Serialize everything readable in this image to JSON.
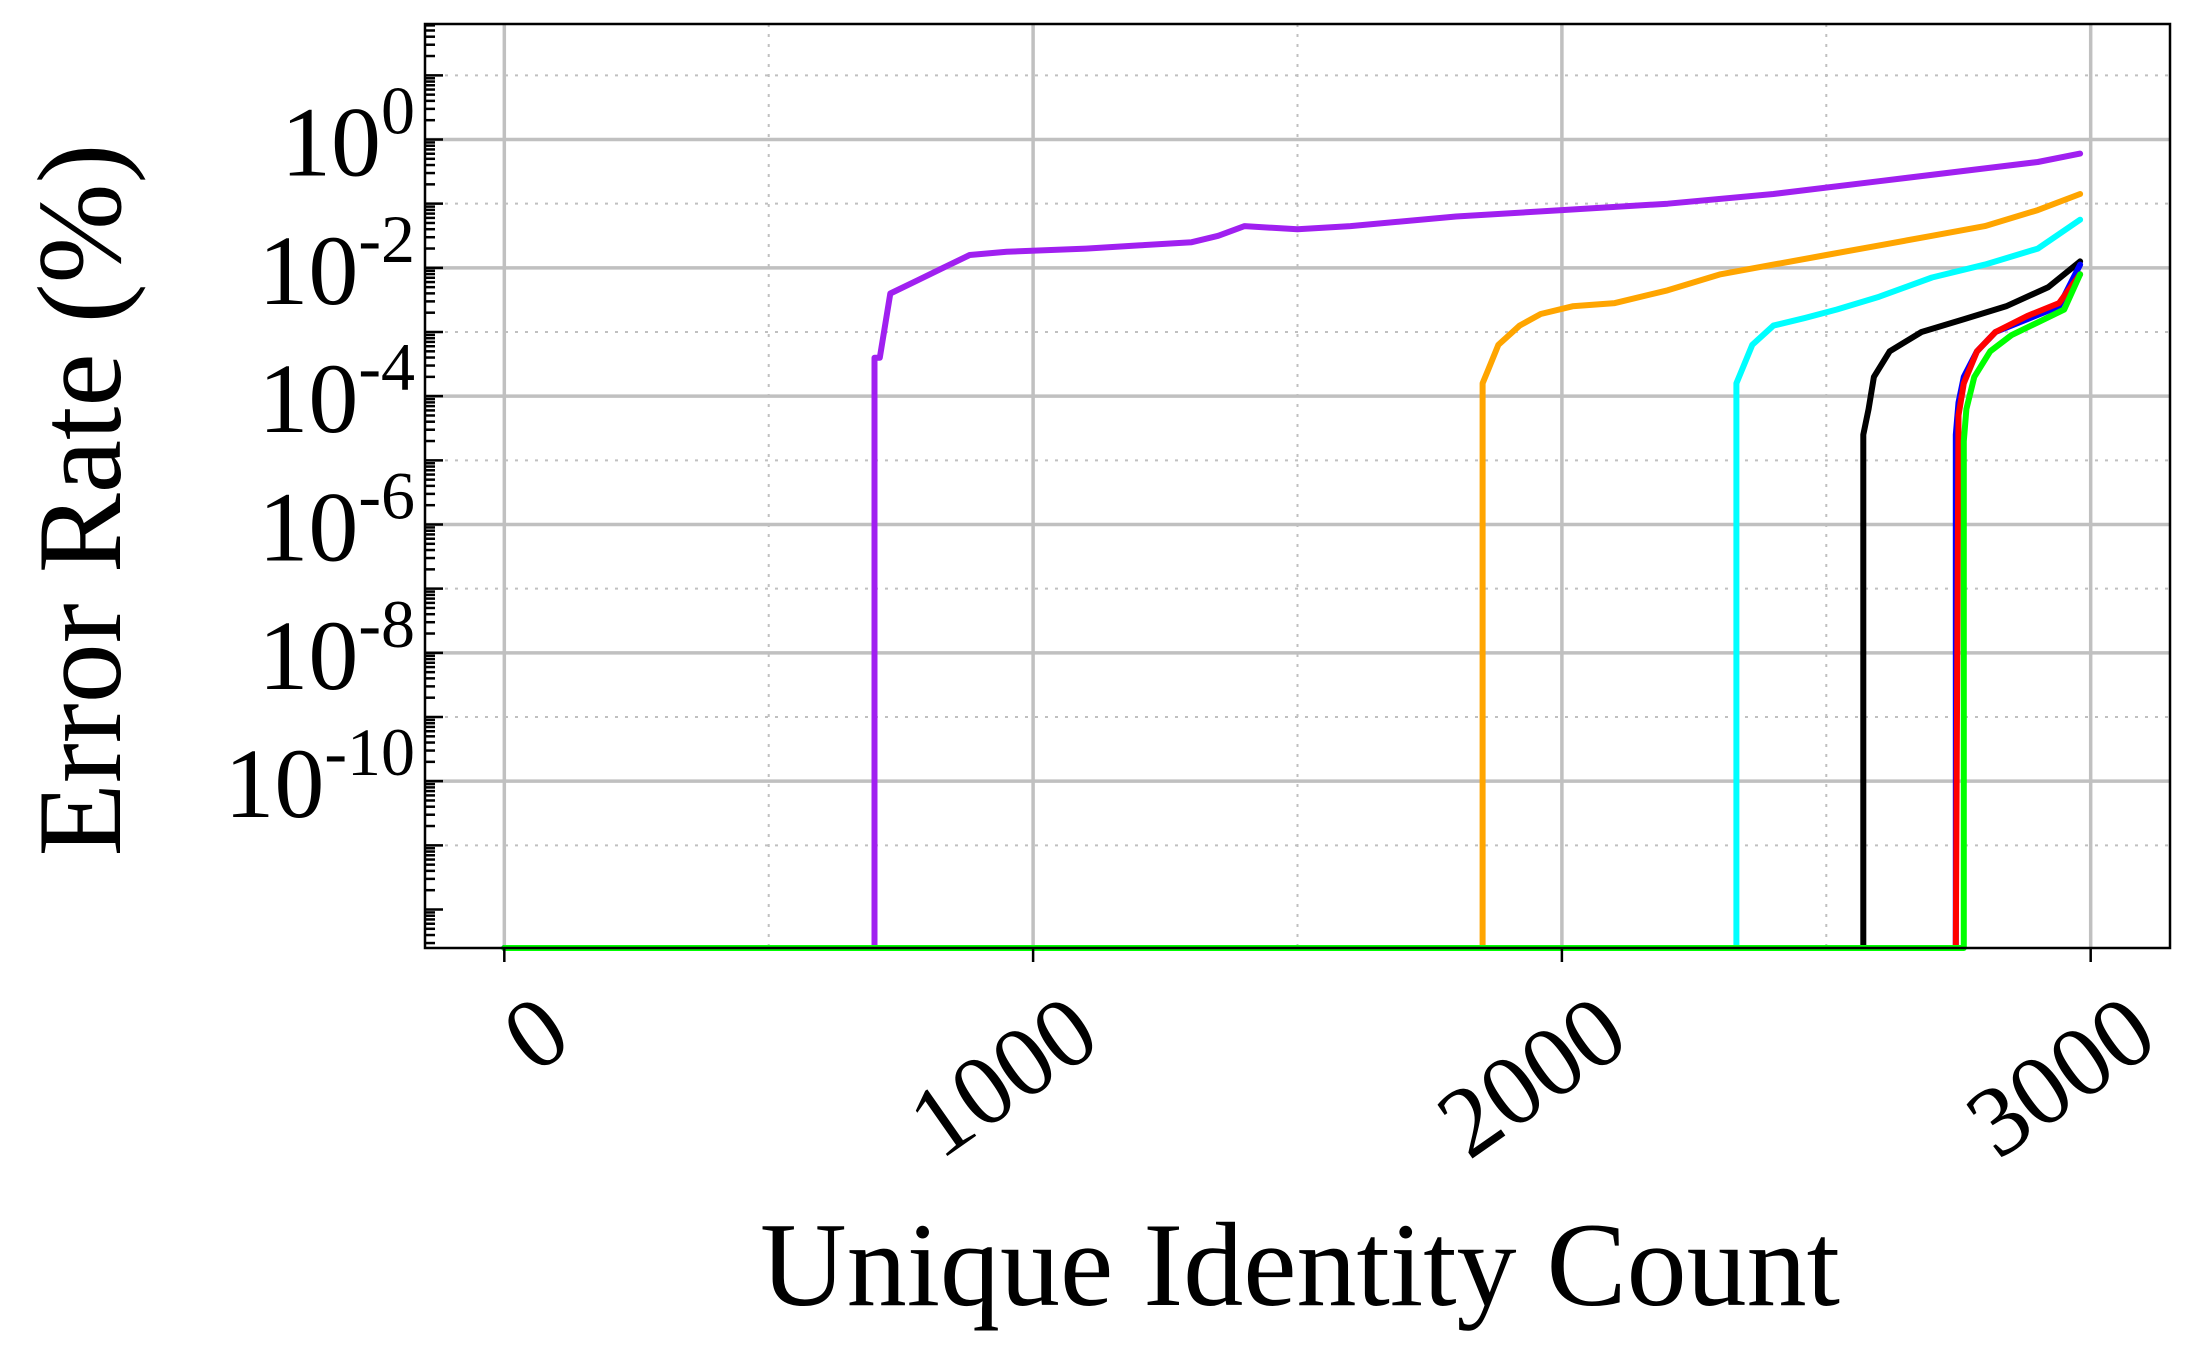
{
  "chart_data": {
    "type": "line",
    "title": "",
    "xlabel": "Unique Identity Count",
    "ylabel": "Error Rate (%)",
    "xlim": [
      -150,
      3150
    ],
    "ylim_exp": [
      -12.6,
      1.8
    ],
    "y_scale": "log",
    "x_ticks": [
      0,
      1000,
      2000,
      3000
    ],
    "x_tick_labels": [
      "0",
      "1000",
      "2000",
      "3000"
    ],
    "y_ticks_exp": [
      0,
      -2,
      -4,
      -6,
      -8,
      -10
    ],
    "y_tick_labels": [
      {
        "base": "10",
        "exp": "0"
      },
      {
        "base": "10",
        "exp": "-2"
      },
      {
        "base": "10",
        "exp": "-4"
      },
      {
        "base": "10",
        "exp": "-6"
      },
      {
        "base": "10",
        "exp": "-8"
      },
      {
        "base": "10",
        "exp": "-10"
      }
    ],
    "grid": true,
    "colors": {
      "purple": "#a020f0",
      "orange": "#ffa500",
      "cyan": "#00ffff",
      "black": "#000000",
      "blue": "#0000ff",
      "red": "#ff0000",
      "green": "#00ff00",
      "grid": "#c0c0c0"
    },
    "series": [
      {
        "color": "#a020f0",
        "points": [
          [
            0,
            -12.6
          ],
          [
            700,
            -12.6
          ],
          [
            700,
            -3.4
          ],
          [
            710,
            -3.4
          ],
          [
            730,
            -2.4
          ],
          [
            780,
            -2.2
          ],
          [
            830,
            -2
          ],
          [
            880,
            -1.8
          ],
          [
            950,
            -1.75
          ],
          [
            1100,
            -1.7
          ],
          [
            1200,
            -1.65
          ],
          [
            1300,
            -1.6
          ],
          [
            1350,
            -1.5
          ],
          [
            1400,
            -1.35
          ],
          [
            1500,
            -1.4
          ],
          [
            1600,
            -1.35
          ],
          [
            1800,
            -1.2
          ],
          [
            2000,
            -1.1
          ],
          [
            2200,
            -1
          ],
          [
            2400,
            -0.85
          ],
          [
            2600,
            -0.65
          ],
          [
            2800,
            -0.45
          ],
          [
            2900,
            -0.35
          ],
          [
            2980,
            -0.22
          ]
        ]
      },
      {
        "color": "#ffa500",
        "points": [
          [
            0,
            -12.6
          ],
          [
            1850,
            -12.6
          ],
          [
            1850,
            -3.8
          ],
          [
            1860,
            -3.6
          ],
          [
            1880,
            -3.2
          ],
          [
            1920,
            -2.9
          ],
          [
            1960,
            -2.72
          ],
          [
            2020,
            -2.6
          ],
          [
            2100,
            -2.55
          ],
          [
            2200,
            -2.35
          ],
          [
            2300,
            -2.1
          ],
          [
            2400,
            -1.95
          ],
          [
            2500,
            -1.8
          ],
          [
            2600,
            -1.65
          ],
          [
            2700,
            -1.5
          ],
          [
            2800,
            -1.35
          ],
          [
            2900,
            -1.1
          ],
          [
            2980,
            -0.85
          ]
        ]
      },
      {
        "color": "#00ffff",
        "points": [
          [
            0,
            -12.6
          ],
          [
            2330,
            -12.6
          ],
          [
            2330,
            -3.8
          ],
          [
            2340,
            -3.6
          ],
          [
            2360,
            -3.2
          ],
          [
            2400,
            -2.9
          ],
          [
            2460,
            -2.78
          ],
          [
            2520,
            -2.65
          ],
          [
            2600,
            -2.45
          ],
          [
            2700,
            -2.15
          ],
          [
            2800,
            -1.95
          ],
          [
            2900,
            -1.7
          ],
          [
            2980,
            -1.25
          ]
        ]
      },
      {
        "color": "#000000",
        "points": [
          [
            0,
            -12.6
          ],
          [
            2570,
            -12.6
          ],
          [
            2570,
            -4.6
          ],
          [
            2580,
            -4.2
          ],
          [
            2590,
            -3.7
          ],
          [
            2620,
            -3.3
          ],
          [
            2680,
            -3
          ],
          [
            2760,
            -2.8
          ],
          [
            2840,
            -2.6
          ],
          [
            2920,
            -2.3
          ],
          [
            2980,
            -1.9
          ]
        ]
      },
      {
        "color": "#0000ff",
        "points": [
          [
            0,
            -12.6
          ],
          [
            2745,
            -12.6
          ],
          [
            2745,
            -4.6
          ],
          [
            2750,
            -4.1
          ],
          [
            2760,
            -3.7
          ],
          [
            2785,
            -3.3
          ],
          [
            2820,
            -3
          ],
          [
            2880,
            -2.8
          ],
          [
            2940,
            -2.6
          ],
          [
            2980,
            -1.95
          ]
        ]
      },
      {
        "color": "#ff0000",
        "points": [
          [
            2745,
            -12.6
          ],
          [
            2750,
            -4.3
          ],
          [
            2760,
            -3.8
          ],
          [
            2785,
            -3.3
          ],
          [
            2820,
            -3
          ],
          [
            2880,
            -2.75
          ],
          [
            2940,
            -2.55
          ],
          [
            2980,
            -2.1
          ]
        ]
      },
      {
        "color": "#00ff00",
        "points": [
          [
            0,
            -12.6
          ],
          [
            2760,
            -12.6
          ],
          [
            2760,
            -4.7
          ],
          [
            2765,
            -4.2
          ],
          [
            2780,
            -3.7
          ],
          [
            2810,
            -3.3
          ],
          [
            2850,
            -3.05
          ],
          [
            2900,
            -2.85
          ],
          [
            2950,
            -2.65
          ],
          [
            2980,
            -2.1
          ]
        ]
      }
    ]
  }
}
